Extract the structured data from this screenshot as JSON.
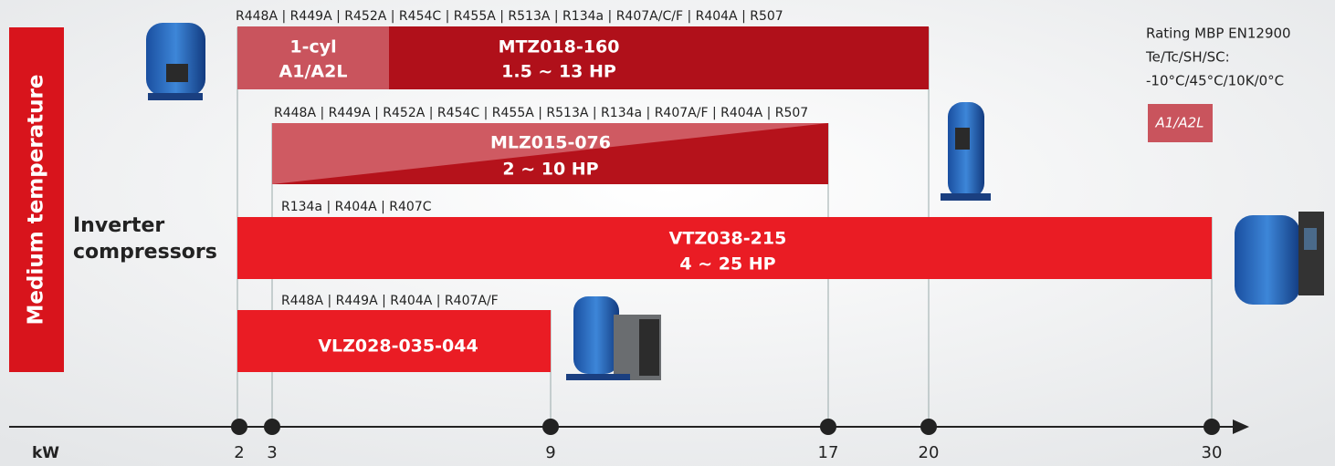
{
  "side_label": "Medium temperature",
  "group_label": [
    "Inverter",
    "compressors"
  ],
  "rating": {
    "lines": [
      "Rating MBP EN12900",
      "Te/Tc/SH/SC:",
      "-10°C/45°C/10K/0°C"
    ],
    "badge": "A1/A2L"
  },
  "bars": [
    {
      "refrigerants": "R448A | R449A | R452A | R454C | R455A | R513A | R134a | R407A/C/F | R404A | R507",
      "model": "MTZ018-160",
      "power": "1.5 ~ 13 HP",
      "segment": [
        "1-cyl",
        "A1/A2L"
      ]
    },
    {
      "refrigerants": "R448A | R449A | R452A | R454C | R455A | R513A | R134a | R407A/F | R404A | R507",
      "model": "MLZ015-076",
      "power": "2 ~ 10 HP"
    },
    {
      "refrigerants": "R134a | R404A |  R407C",
      "model": "VTZ038-215",
      "power": "4 ~ 25 HP"
    },
    {
      "refrigerants": "R448A | R449A |  R404A | R407A/F",
      "model": "VLZ028-035-044"
    }
  ],
  "axis": {
    "unit": "kW",
    "ticks": [
      2,
      3,
      9,
      17,
      20,
      30
    ]
  }
}
